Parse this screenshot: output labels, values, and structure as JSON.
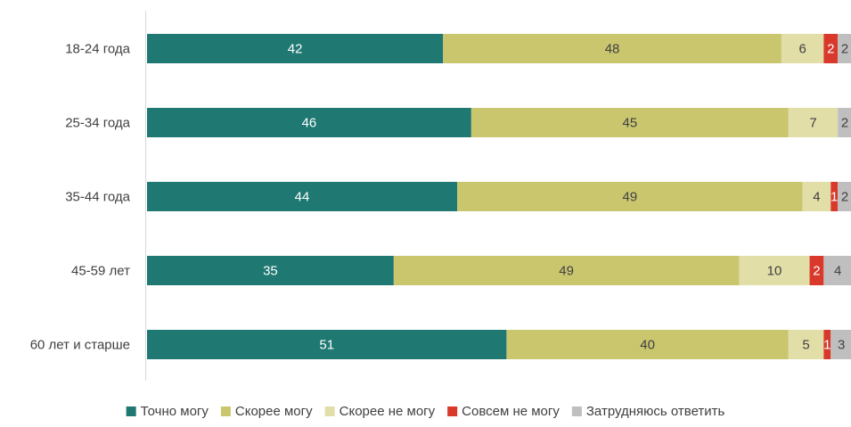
{
  "chart_data": {
    "type": "bar",
    "orientation": "horizontal",
    "stacked": true,
    "categories": [
      "18-24 года",
      "25-34 года",
      "35-44 года",
      "45-59 лет",
      "60 лет и старше"
    ],
    "series": [
      {
        "name": "Точно могу",
        "color": "#1F7872",
        "label_color": "#ffffff",
        "values": [
          42,
          46,
          44,
          35,
          51
        ]
      },
      {
        "name": "Скорее могу",
        "color": "#C9C66E",
        "label_color": "#404040",
        "values": [
          48,
          45,
          49,
          49,
          40
        ]
      },
      {
        "name": "Скорее не могу",
        "color": "#E2DEA8",
        "label_color": "#404040",
        "values": [
          6,
          7,
          4,
          10,
          5
        ]
      },
      {
        "name": "Совсем не могу",
        "color": "#D8392B",
        "label_color": "#ffffff",
        "values": [
          2,
          0,
          1,
          2,
          1
        ]
      },
      {
        "name": "Затрудняюсь ответить",
        "color": "#BFBFBF",
        "label_color": "#404040",
        "values": [
          2,
          2,
          2,
          4,
          3
        ]
      }
    ],
    "xlim": [
      0,
      100
    ],
    "grid": false,
    "legend_position": "bottom",
    "title": "",
    "xlabel": "",
    "ylabel": ""
  }
}
